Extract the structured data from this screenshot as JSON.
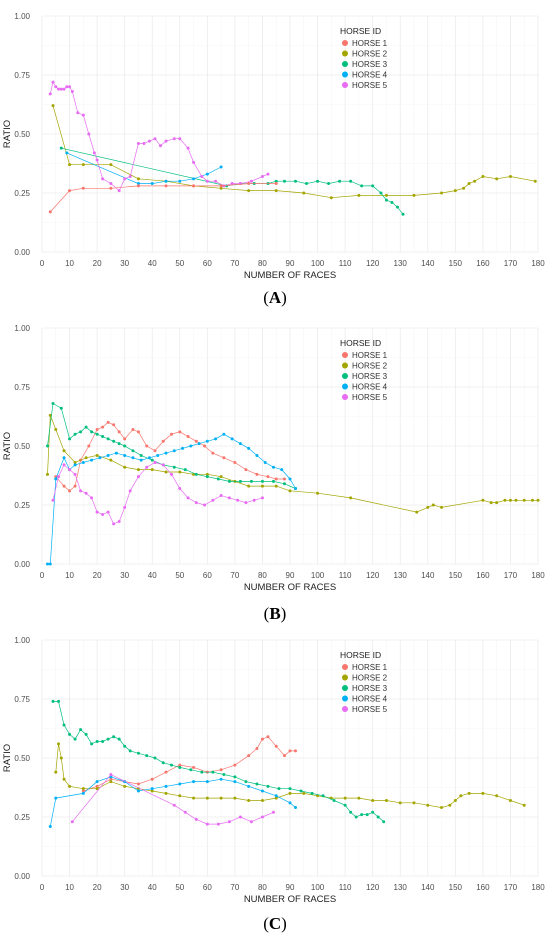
{
  "figure": {
    "panels": [
      {
        "label_open": "(",
        "label_letter": "A",
        "label_close": ")"
      },
      {
        "label_open": "(",
        "label_letter": "B",
        "label_close": ")"
      },
      {
        "label_open": "(",
        "label_letter": "C",
        "label_close": ")"
      }
    ]
  },
  "chart_data": [
    {
      "type": "line",
      "title": "",
      "xlabel": "NUMBER OF RACES",
      "ylabel": "RATIO",
      "xlim": [
        0,
        180
      ],
      "ylim": [
        0,
        1
      ],
      "xticks": [
        0,
        10,
        20,
        30,
        40,
        50,
        60,
        70,
        80,
        90,
        100,
        110,
        120,
        130,
        140,
        150,
        160,
        170,
        180
      ],
      "yticks": [
        "0.00",
        "0.25",
        "0.50",
        "0.75",
        "1.00"
      ],
      "grid": true,
      "legend_title": "HORSE ID",
      "legend_position": "top-right",
      "series": [
        {
          "name": "HORSE 1",
          "color": "#F8766D",
          "x": [],
          "y": []
        },
        {
          "name": "HORSE 2",
          "color": "#A3A500",
          "x": [
            4,
            10,
            15,
            25,
            35,
            45,
            55,
            65,
            75,
            85,
            95,
            105,
            115,
            125,
            135,
            145,
            150,
            153,
            155,
            157,
            160,
            165,
            170,
            179
          ],
          "y": [
            0.62,
            0.37,
            0.37,
            0.37,
            0.31,
            0.3,
            0.28,
            0.27,
            0.26,
            0.26,
            0.25,
            0.23,
            0.24,
            0.24,
            0.24,
            0.25,
            0.26,
            0.27,
            0.29,
            0.3,
            0.32,
            0.31,
            0.32,
            0.3
          ]
        },
        {
          "name": "HORSE 3",
          "color": "#00BF7D",
          "x": [
            7,
            67,
            72,
            77,
            82,
            85,
            88,
            92,
            96,
            100,
            104,
            108,
            112,
            116,
            120,
            123,
            125,
            127,
            129,
            131
          ],
          "y": [
            0.44,
            0.28,
            0.29,
            0.29,
            0.29,
            0.3,
            0.3,
            0.3,
            0.29,
            0.3,
            0.29,
            0.3,
            0.3,
            0.28,
            0.28,
            0.25,
            0.22,
            0.21,
            0.19,
            0.16
          ]
        },
        {
          "name": "HORSE 4",
          "color": "#00B0F6",
          "x": [
            9,
            35,
            40,
            45,
            50,
            55,
            60,
            65
          ],
          "y": [
            0.42,
            0.29,
            0.29,
            0.3,
            0.3,
            0.31,
            0.33,
            0.36
          ]
        },
        {
          "name": "HORSE 5",
          "color": "#E76BF3",
          "x": [
            3,
            4,
            5,
            6,
            7,
            8,
            9,
            10,
            11,
            13,
            15,
            17,
            19,
            20,
            22,
            25,
            28,
            30,
            32,
            35,
            37,
            39,
            41,
            43,
            45,
            48,
            50,
            53,
            55,
            58,
            60,
            63,
            66,
            69,
            72,
            76,
            80,
            82
          ],
          "y": [
            0.67,
            0.72,
            0.7,
            0.69,
            0.69,
            0.69,
            0.7,
            0.7,
            0.68,
            0.59,
            0.58,
            0.5,
            0.42,
            0.39,
            0.31,
            0.29,
            0.26,
            0.31,
            0.32,
            0.46,
            0.46,
            0.47,
            0.48,
            0.45,
            0.47,
            0.48,
            0.48,
            0.44,
            0.38,
            0.32,
            0.3,
            0.3,
            0.28,
            0.29,
            0.29,
            0.3,
            0.32,
            0.33
          ]
        },
        {
          "name": "",
          "color": "#F8766D",
          "x": [
            3,
            10,
            15,
            25,
            35,
            45,
            55,
            65,
            75,
            85
          ],
          "y": [
            0.17,
            0.26,
            0.27,
            0.27,
            0.28,
            0.28,
            0.28,
            0.28,
            0.29,
            0.29
          ]
        }
      ]
    },
    {
      "type": "line",
      "title": "",
      "xlabel": "NUMBER OF RACES",
      "ylabel": "RATIO",
      "xlim": [
        0,
        180
      ],
      "ylim": [
        0,
        1
      ],
      "xticks": [
        0,
        10,
        20,
        30,
        40,
        50,
        60,
        70,
        80,
        90,
        100,
        110,
        120,
        130,
        140,
        150,
        160,
        170,
        180
      ],
      "yticks": [
        "0.00",
        "0.25",
        "0.50",
        "0.75",
        "1.00"
      ],
      "grid": true,
      "legend_title": "HORSE ID",
      "legend_position": "top-right",
      "series": [
        {
          "name": "HORSE 1",
          "color": "#F8766D",
          "x": [
            5,
            8,
            10,
            12,
            14,
            17,
            20,
            22,
            24,
            26,
            28,
            30,
            33,
            35,
            38,
            41,
            44,
            47,
            50,
            53,
            56,
            59,
            62,
            66,
            70,
            74,
            78,
            82,
            85,
            88
          ],
          "y": [
            0.37,
            0.33,
            0.31,
            0.33,
            0.44,
            0.5,
            0.57,
            0.58,
            0.6,
            0.59,
            0.56,
            0.53,
            0.57,
            0.56,
            0.5,
            0.48,
            0.52,
            0.55,
            0.56,
            0.54,
            0.52,
            0.5,
            0.47,
            0.45,
            0.43,
            0.4,
            0.38,
            0.37,
            0.36,
            0.36
          ]
        },
        {
          "name": "HORSE 2",
          "color": "#A3A500",
          "x": [
            2,
            3,
            5,
            8,
            12,
            16,
            20,
            25,
            30,
            35,
            40,
            45,
            50,
            55,
            60,
            65,
            70,
            75,
            80,
            85,
            90,
            100,
            112,
            136,
            140,
            142,
            145,
            160,
            163,
            165,
            168,
            170,
            172,
            175,
            178,
            180
          ],
          "y": [
            0.38,
            0.63,
            0.57,
            0.48,
            0.43,
            0.45,
            0.46,
            0.44,
            0.41,
            0.4,
            0.4,
            0.39,
            0.39,
            0.38,
            0.38,
            0.37,
            0.35,
            0.33,
            0.33,
            0.33,
            0.31,
            0.3,
            0.28,
            0.22,
            0.24,
            0.25,
            0.24,
            0.27,
            0.26,
            0.26,
            0.27,
            0.27,
            0.27,
            0.27,
            0.27,
            0.27
          ]
        },
        {
          "name": "HORSE 3",
          "color": "#00BF7D",
          "x": [
            2,
            4,
            7,
            10,
            12,
            14,
            16,
            18,
            20,
            22,
            24,
            26,
            28,
            30,
            33,
            36,
            40,
            44,
            48,
            52,
            56,
            60,
            64,
            68,
            72,
            76,
            80,
            84,
            88,
            92
          ],
          "y": [
            0.5,
            0.68,
            0.66,
            0.53,
            0.55,
            0.56,
            0.58,
            0.56,
            0.55,
            0.54,
            0.53,
            0.52,
            0.51,
            0.5,
            0.48,
            0.46,
            0.44,
            0.42,
            0.41,
            0.4,
            0.38,
            0.37,
            0.36,
            0.35,
            0.35,
            0.35,
            0.35,
            0.35,
            0.34,
            0.32
          ]
        },
        {
          "name": "HORSE 4",
          "color": "#00B0F6",
          "x": [
            2,
            3,
            5,
            8,
            10,
            12,
            15,
            18,
            21,
            24,
            27,
            30,
            33,
            36,
            39,
            42,
            45,
            48,
            51,
            54,
            57,
            60,
            63,
            66,
            69,
            72,
            75,
            78,
            81,
            84,
            87,
            90,
            92
          ],
          "y": [
            0.0,
            0.0,
            0.36,
            0.45,
            0.4,
            0.42,
            0.43,
            0.44,
            0.45,
            0.46,
            0.47,
            0.46,
            0.45,
            0.44,
            0.45,
            0.46,
            0.47,
            0.48,
            0.49,
            0.5,
            0.51,
            0.52,
            0.53,
            0.55,
            0.53,
            0.51,
            0.49,
            0.46,
            0.43,
            0.41,
            0.4,
            0.36,
            0.32
          ]
        },
        {
          "name": "HORSE 5",
          "color": "#E76BF3",
          "x": [
            4,
            6,
            8,
            10,
            12,
            14,
            16,
            18,
            20,
            22,
            24,
            26,
            28,
            30,
            32,
            35,
            38,
            41,
            44,
            47,
            50,
            53,
            56,
            59,
            62,
            65,
            68,
            71,
            74,
            77,
            80
          ],
          "y": [
            0.27,
            0.37,
            0.42,
            0.4,
            0.38,
            0.31,
            0.3,
            0.28,
            0.22,
            0.21,
            0.22,
            0.17,
            0.18,
            0.24,
            0.31,
            0.37,
            0.41,
            0.43,
            0.42,
            0.38,
            0.32,
            0.28,
            0.26,
            0.25,
            0.27,
            0.29,
            0.28,
            0.27,
            0.26,
            0.27,
            0.28
          ]
        }
      ]
    },
    {
      "type": "line",
      "title": "",
      "xlabel": "NUMBER OF RACES",
      "ylabel": "RATIO",
      "xlim": [
        0,
        180
      ],
      "ylim": [
        0,
        1
      ],
      "xticks": [
        0,
        10,
        20,
        30,
        40,
        50,
        60,
        70,
        80,
        90,
        100,
        110,
        120,
        130,
        140,
        150,
        160,
        170,
        180
      ],
      "yticks": [
        "0.00",
        "0.25",
        "0.50",
        "0.75",
        "1.00"
      ],
      "grid": true,
      "legend_title": "HORSE ID",
      "legend_position": "top-right",
      "series": [
        {
          "name": "HORSE 1",
          "color": "#F8766D",
          "x": [
            15,
            20,
            25,
            30,
            35,
            40,
            45,
            50,
            55,
            60,
            65,
            70,
            75,
            78,
            80,
            82,
            85,
            88,
            90,
            92
          ],
          "y": [
            0.36,
            0.38,
            0.41,
            0.4,
            0.39,
            0.41,
            0.44,
            0.47,
            0.46,
            0.44,
            0.45,
            0.47,
            0.51,
            0.54,
            0.58,
            0.59,
            0.55,
            0.51,
            0.53,
            0.53
          ]
        },
        {
          "name": "HORSE 2",
          "color": "#A3A500",
          "x": [
            5,
            6,
            7,
            8,
            10,
            15,
            20,
            25,
            30,
            35,
            40,
            45,
            50,
            55,
            60,
            65,
            70,
            75,
            80,
            85,
            90,
            95,
            100,
            105,
            110,
            115,
            120,
            125,
            130,
            135,
            140,
            145,
            148,
            150,
            152,
            155,
            160,
            165,
            170,
            175
          ],
          "y": [
            0.44,
            0.56,
            0.5,
            0.41,
            0.38,
            0.37,
            0.37,
            0.4,
            0.38,
            0.37,
            0.36,
            0.35,
            0.34,
            0.33,
            0.33,
            0.33,
            0.33,
            0.32,
            0.32,
            0.33,
            0.35,
            0.35,
            0.34,
            0.33,
            0.33,
            0.33,
            0.32,
            0.32,
            0.31,
            0.31,
            0.3,
            0.29,
            0.3,
            0.32,
            0.34,
            0.35,
            0.35,
            0.34,
            0.32,
            0.3
          ]
        },
        {
          "name": "HORSE 3",
          "color": "#00BF7D",
          "x": [
            4,
            6,
            8,
            10,
            12,
            14,
            16,
            18,
            20,
            22,
            24,
            26,
            28,
            30,
            32,
            35,
            38,
            41,
            44,
            47,
            50,
            54,
            58,
            62,
            66,
            70,
            74,
            78,
            82,
            86,
            90,
            94,
            98,
            102,
            106,
            110,
            112,
            114,
            116,
            118,
            120,
            122,
            124
          ],
          "y": [
            0.74,
            0.74,
            0.64,
            0.6,
            0.58,
            0.62,
            0.6,
            0.56,
            0.57,
            0.57,
            0.58,
            0.59,
            0.58,
            0.55,
            0.53,
            0.52,
            0.51,
            0.5,
            0.48,
            0.47,
            0.46,
            0.45,
            0.44,
            0.44,
            0.43,
            0.42,
            0.4,
            0.39,
            0.38,
            0.37,
            0.37,
            0.36,
            0.35,
            0.34,
            0.32,
            0.3,
            0.27,
            0.25,
            0.26,
            0.26,
            0.27,
            0.25,
            0.23
          ]
        },
        {
          "name": "HORSE 4",
          "color": "#00B0F6",
          "x": [
            3,
            5,
            15,
            20,
            25,
            30,
            35,
            40,
            45,
            50,
            55,
            60,
            65,
            70,
            75,
            80,
            85,
            90,
            92
          ],
          "y": [
            0.21,
            0.33,
            0.35,
            0.4,
            0.42,
            0.4,
            0.36,
            0.37,
            0.38,
            0.39,
            0.4,
            0.4,
            0.41,
            0.4,
            0.38,
            0.36,
            0.34,
            0.31,
            0.29
          ]
        },
        {
          "name": "HORSE 5",
          "color": "#E76BF3",
          "x": [
            11,
            25,
            48,
            52,
            56,
            60,
            64,
            68,
            72,
            76,
            80,
            84
          ],
          "y": [
            0.23,
            0.43,
            0.3,
            0.27,
            0.24,
            0.22,
            0.22,
            0.23,
            0.25,
            0.23,
            0.25,
            0.27
          ]
        }
      ]
    }
  ]
}
